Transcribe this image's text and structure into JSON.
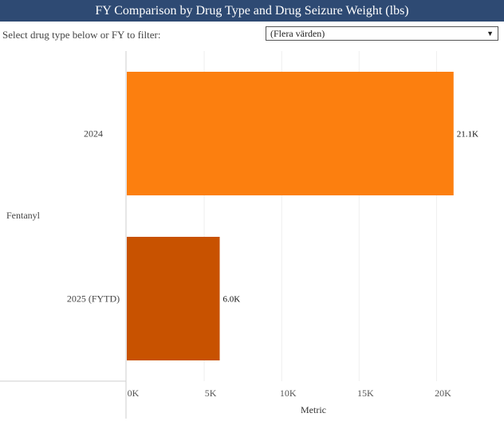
{
  "header": {
    "title": "FY Comparison by Drug Type and Drug Seizure Weight (lbs)"
  },
  "filter": {
    "label": "Select drug type below or FY to filter:",
    "selected": "(Flera värden)",
    "arrow_icon": "triangle-down-icon"
  },
  "chart_data": {
    "type": "bar",
    "orientation": "horizontal",
    "group": "Fentanyl",
    "categories": [
      "2024",
      "2025 (FYTD)"
    ],
    "values": [
      21100,
      6000
    ],
    "data_labels": [
      "21.1K",
      "6.0K"
    ],
    "colors": [
      "#fc7f0f",
      "#c85200"
    ],
    "xlabel": "Metric",
    "xlim": [
      0,
      22000
    ],
    "xticks": [
      0,
      5000,
      10000,
      15000,
      20000
    ],
    "xtick_labels": [
      "0K",
      "5K",
      "10K",
      "15K",
      "20K"
    ],
    "grid": true
  }
}
